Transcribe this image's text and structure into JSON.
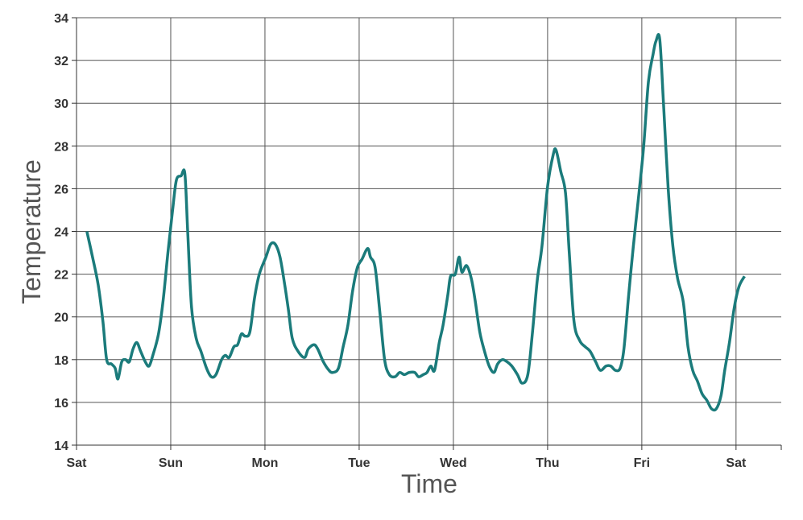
{
  "chart_data": {
    "type": "line",
    "x_label": "Time",
    "y_label": "Temperature",
    "x": [
      0.11,
      0.17,
      0.23,
      0.28,
      0.32,
      0.37,
      0.41,
      0.44,
      0.48,
      0.52,
      0.56,
      0.6,
      0.64,
      0.68,
      0.73,
      0.77,
      0.81,
      0.87,
      0.92,
      0.97,
      1.02,
      1.06,
      1.11,
      1.15,
      1.18,
      1.22,
      1.27,
      1.32,
      1.38,
      1.43,
      1.48,
      1.54,
      1.58,
      1.62,
      1.67,
      1.71,
      1.75,
      1.79,
      1.84,
      1.89,
      1.94,
      2.01,
      2.06,
      2.11,
      2.16,
      2.21,
      2.25,
      2.29,
      2.35,
      2.42,
      2.46,
      2.52,
      2.56,
      2.62,
      2.68,
      2.72,
      2.78,
      2.83,
      2.88,
      2.93,
      2.98,
      3.03,
      3.09,
      3.12,
      3.17,
      3.22,
      3.27,
      3.32,
      3.38,
      3.43,
      3.48,
      3.53,
      3.59,
      3.63,
      3.68,
      3.72,
      3.76,
      3.8,
      3.85,
      3.89,
      3.94,
      3.97,
      4.02,
      4.06,
      4.09,
      4.14,
      4.19,
      4.23,
      4.28,
      4.33,
      4.38,
      4.43,
      4.47,
      4.52,
      4.57,
      4.62,
      4.68,
      4.73,
      4.79,
      4.84,
      4.89,
      4.94,
      5.0,
      5.06,
      5.09,
      5.14,
      5.19,
      5.23,
      5.28,
      5.34,
      5.4,
      5.45,
      5.51,
      5.56,
      5.62,
      5.67,
      5.72,
      5.77,
      5.81,
      5.86,
      5.91,
      5.97,
      6.02,
      6.07,
      6.12,
      6.15,
      6.19,
      6.23,
      6.28,
      6.33,
      6.38,
      6.44,
      6.49,
      6.54,
      6.59,
      6.64,
      6.69,
      6.74,
      6.79,
      6.84,
      6.88,
      6.93,
      6.98,
      7.03,
      7.09
    ],
    "series": [
      {
        "name": "Temperature",
        "color": "#1b7b7b",
        "values": [
          24.0,
          22.8,
          21.5,
          19.8,
          18.0,
          17.8,
          17.6,
          17.1,
          17.9,
          18.0,
          17.9,
          18.5,
          18.8,
          18.4,
          17.9,
          17.7,
          18.2,
          19.2,
          20.8,
          23.0,
          25.0,
          26.4,
          26.6,
          26.7,
          24.0,
          20.5,
          19.0,
          18.4,
          17.6,
          17.2,
          17.3,
          18.0,
          18.2,
          18.1,
          18.6,
          18.7,
          19.2,
          19.1,
          19.3,
          20.9,
          22.0,
          22.8,
          23.4,
          23.4,
          22.8,
          21.5,
          20.3,
          19.0,
          18.4,
          18.1,
          18.5,
          18.7,
          18.5,
          17.9,
          17.5,
          17.4,
          17.6,
          18.6,
          19.6,
          21.2,
          22.3,
          22.7,
          23.2,
          22.8,
          22.3,
          20.2,
          18.0,
          17.3,
          17.2,
          17.4,
          17.3,
          17.4,
          17.4,
          17.2,
          17.3,
          17.4,
          17.7,
          17.5,
          18.8,
          19.6,
          21.0,
          21.9,
          22.0,
          22.8,
          22.1,
          22.4,
          21.8,
          20.8,
          19.3,
          18.4,
          17.7,
          17.4,
          17.8,
          18.0,
          17.9,
          17.7,
          17.3,
          16.9,
          17.3,
          19.3,
          21.7,
          23.3,
          26.1,
          27.6,
          27.8,
          26.8,
          25.8,
          23.0,
          19.8,
          18.9,
          18.6,
          18.4,
          17.9,
          17.5,
          17.7,
          17.7,
          17.5,
          17.6,
          18.5,
          21.0,
          23.3,
          25.8,
          28.0,
          31.0,
          32.3,
          32.9,
          33.0,
          30.0,
          26.0,
          23.3,
          21.8,
          20.7,
          18.6,
          17.5,
          17.0,
          16.4,
          16.1,
          15.7,
          15.7,
          16.3,
          17.5,
          18.8,
          20.4,
          21.4,
          21.9
        ]
      }
    ],
    "xlim": [
      0,
      7.48
    ],
    "xticks": [
      {
        "value": 0,
        "label": "Sat"
      },
      {
        "value": 1,
        "label": "Sun"
      },
      {
        "value": 2,
        "label": "Mon"
      },
      {
        "value": 3,
        "label": "Tue"
      },
      {
        "value": 4,
        "label": "Wed"
      },
      {
        "value": 5,
        "label": "Thu"
      },
      {
        "value": 6,
        "label": "Fri"
      },
      {
        "value": 7,
        "label": "Sat"
      }
    ],
    "ylim": [
      14,
      34
    ],
    "yticks": [
      14,
      16,
      18,
      20,
      22,
      24,
      26,
      28,
      30,
      32,
      34
    ],
    "grid": true
  }
}
